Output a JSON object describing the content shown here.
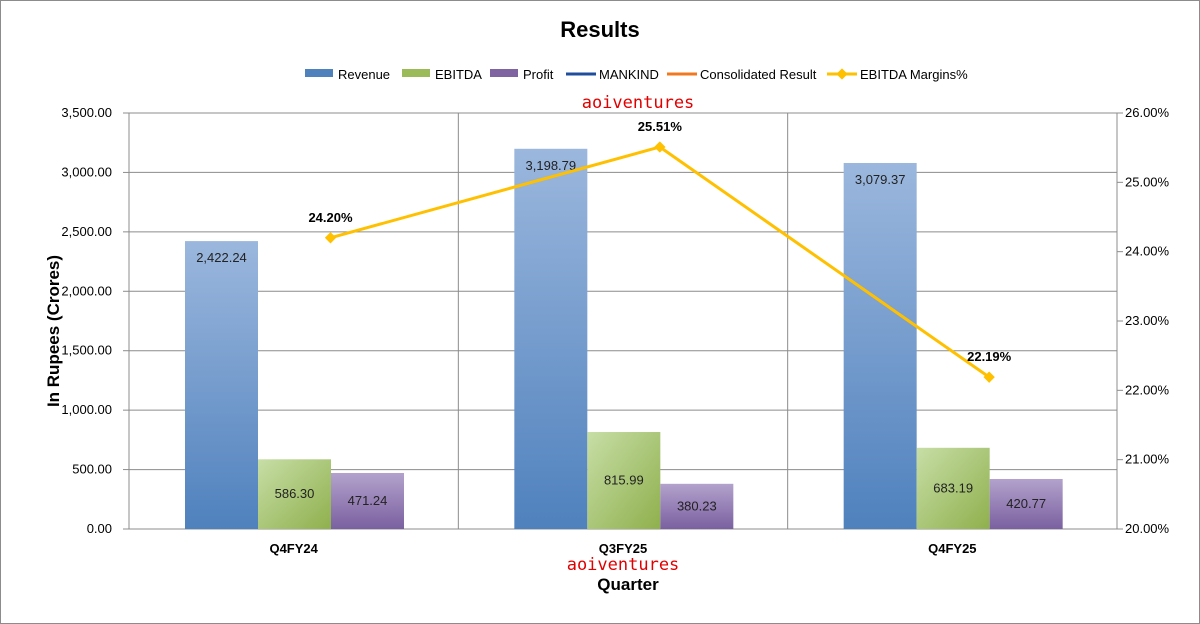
{
  "chart_data": {
    "type": "bar",
    "title": "Results",
    "xlabel": "Quarter",
    "ylabel": "In Rupees (Crores)",
    "categories": [
      "Q4FY24",
      "Q3FY25",
      "Q4FY25"
    ],
    "ylim": [
      0,
      3500
    ],
    "yticks": [
      "0.00",
      "500.00",
      "1,000.00",
      "1,500.00",
      "2,000.00",
      "2,500.00",
      "3,000.00",
      "3,500.00"
    ],
    "y2lim": [
      20,
      26
    ],
    "y2ticks": [
      "20.00%",
      "21.00%",
      "22.00%",
      "23.00%",
      "24.00%",
      "25.00%",
      "26.00%"
    ],
    "series": [
      {
        "name": "Revenue",
        "values": [
          2422.24,
          3198.79,
          3079.37
        ],
        "labels": [
          "2,422.24",
          "3,198.79",
          "3,079.37"
        ],
        "color": "#4f81bd"
      },
      {
        "name": "EBITDA",
        "values": [
          586.3,
          815.99,
          683.19
        ],
        "labels": [
          "586.30",
          "815.99",
          "683.19"
        ],
        "color": "#9bbb59"
      },
      {
        "name": "Profit",
        "values": [
          471.24,
          380.23,
          420.77
        ],
        "labels": [
          "471.24",
          "380.23",
          "420.77"
        ],
        "color": "#8064a2"
      }
    ],
    "line_series": {
      "name": "EBITDA Margins%",
      "axis": "secondary",
      "values": [
        24.2,
        25.51,
        22.19
      ],
      "labels": [
        "24.20%",
        "25.51%",
        "22.19%"
      ],
      "color": "#ffc000"
    },
    "legend": [
      {
        "name": "Revenue",
        "kind": "bar",
        "color": "#4f81bd"
      },
      {
        "name": "EBITDA",
        "kind": "bar",
        "color": "#9bbb59"
      },
      {
        "name": "Profit",
        "kind": "bar",
        "color": "#8064a2"
      },
      {
        "name": "MANKIND",
        "kind": "line",
        "color": "#1f4e9c"
      },
      {
        "name": "Consolidated Result",
        "kind": "line",
        "color": "#f07820"
      },
      {
        "name": "EBITDA Margins%",
        "kind": "marker-line",
        "color": "#ffc000"
      }
    ],
    "legend_position": "top",
    "grid": true
  },
  "watermarks": [
    "aoiventures",
    "aoiventures"
  ]
}
